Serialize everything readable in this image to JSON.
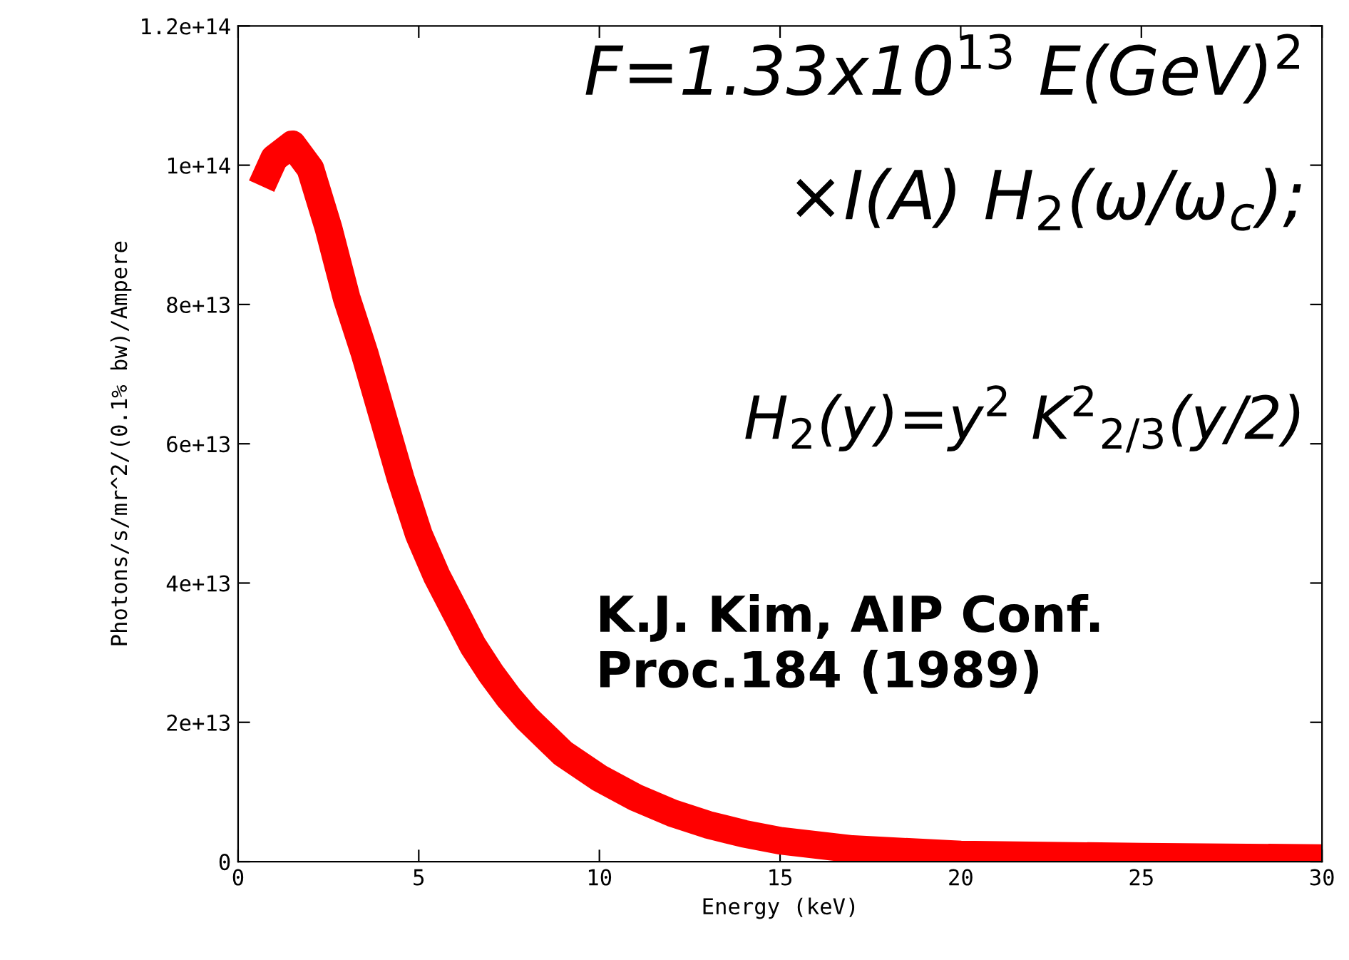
{
  "chart_data": {
    "type": "line",
    "xlabel": "Energy (keV)",
    "ylabel": "Photons/s/mr^2/(0.1% bw)/Ampere",
    "x": [
      0.65,
      1,
      1.5,
      2,
      2.5,
      3,
      3.5,
      4,
      4.5,
      5,
      5.5,
      6,
      6.5,
      7,
      7.5,
      8,
      9,
      10,
      11,
      12,
      13,
      14,
      15,
      17,
      20,
      25,
      30
    ],
    "series": [
      {
        "color": "#ff0000",
        "values": [
          97000000000000.0,
          101000000000000.0,
          103000000000000.0,
          99500000000000.0,
          91000000000000.0,
          81000000000000.0,
          73000000000000.0,
          64000000000000.0,
          55000000000000.0,
          47000000000000.0,
          41000000000000.0,
          36000000000000.0,
          31000000000000.0,
          27000000000000.0,
          23500000000000.0,
          20500000000000.0,
          15500000000000.0,
          12000000000000.0,
          9200000000000.0,
          7000000000000.0,
          5300000000000.0,
          4000000000000.0,
          3000000000000.0,
          1800000000000.0,
          1000000000000.0,
          700000000000.0,
          500000000000.0
        ]
      }
    ],
    "xlim": [
      0,
      30
    ],
    "xticks": [
      0,
      5,
      10,
      15,
      20,
      25,
      30
    ],
    "ylim": [
      0,
      120000000000000.0
    ],
    "yticks": [
      0,
      {
        "value": 20000000000000.0,
        "label": "2e+13"
      },
      {
        "value": 40000000000000.0,
        "label": "4e+13"
      },
      {
        "value": 60000000000000.0,
        "label": "6e+13"
      },
      {
        "value": 80000000000000.0,
        "label": "8e+13"
      },
      {
        "value": 100000000000000.0,
        "label": "1e+14"
      },
      {
        "value": 120000000000000.0,
        "label": "1.2e+14"
      }
    ],
    "annotations": [
      "F=1.33x10$^{13}$ E(GeV)$^{2}$",
      "×I(A) H$_{2}$(ω/ω$_{c}$);",
      "H$_{2}$(y)=y$^{2}$ K$^{2}$$_{2/3}$(y/2)",
      "K.J. Kim, AIP Conf.\nProc.184 (1989)"
    ]
  }
}
